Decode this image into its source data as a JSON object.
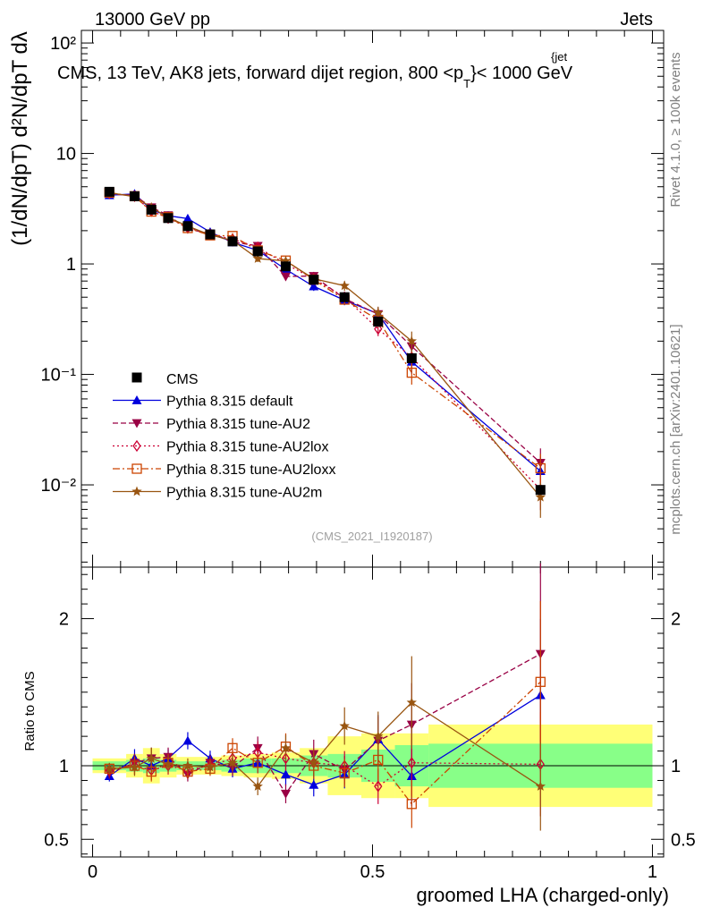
{
  "header": {
    "left": "13000 GeV pp",
    "right": "Jets"
  },
  "chart_data": {
    "type": "line",
    "title": "CMS, 13 TeV, AK8 jets, forward dijet region, 800 <p_T^{jet}< 1000 GeV",
    "title_main": "CMS, 13 TeV, AK8 jets, forward dijet region, 800 <p",
    "title_sup": "{jet",
    "title_sub": "T",
    "title_tail": "}< 1000 GeV",
    "ylabel": "(1/dN/dpT) d²N/dpT dλ",
    "xlabel": "groomed LHA (charged-only)",
    "ratio_ylabel": "Ratio to CMS",
    "watermark": "(CMS_2021_I1920187)",
    "side_top": "Rivet 4.1.0, ≥ 100k events",
    "side_bottom": "mcplots.cern.ch [arXiv:2401.10621]",
    "xlim": [
      -0.02,
      1.02
    ],
    "ylim": [
      0.0018,
      130
    ],
    "yscale": "log",
    "ratio_ylim": [
      0.38,
      2.35
    ],
    "x_ticks": [
      "0",
      "0.5",
      "1"
    ],
    "y_ticks": [
      "10⁻²",
      "10⁻¹",
      "1",
      "10",
      "10²"
    ],
    "ratio_ticks": [
      "0.5",
      "1",
      "2"
    ],
    "x": [
      0.03,
      0.075,
      0.105,
      0.135,
      0.17,
      0.21,
      0.25,
      0.295,
      0.345,
      0.395,
      0.45,
      0.51,
      0.57,
      0.8
    ],
    "bin_edges": [
      0.0,
      0.06,
      0.09,
      0.12,
      0.15,
      0.19,
      0.23,
      0.27,
      0.32,
      0.37,
      0.42,
      0.48,
      0.54,
      0.6,
      1.0
    ],
    "cms": {
      "name": "CMS",
      "values": [
        4.5,
        4.1,
        3.1,
        2.6,
        2.2,
        1.85,
        1.6,
        1.3,
        0.95,
        0.72,
        0.5,
        0.3,
        0.14,
        0.009
      ],
      "band_green": [
        0.03,
        0.04,
        0.05,
        0.04,
        0.03,
        0.03,
        0.04,
        0.05,
        0.05,
        0.07,
        0.08,
        0.11,
        0.14,
        0.15
      ],
      "band_yellow": [
        0.05,
        0.08,
        0.12,
        0.08,
        0.06,
        0.06,
        0.07,
        0.08,
        0.09,
        0.12,
        0.2,
        0.22,
        0.22,
        0.28
      ]
    },
    "series": [
      {
        "name": "Pythia 8.315 default",
        "color": "#0000dd",
        "marker": "triangle-up",
        "ratio": [
          0.93,
          1.05,
          1.0,
          1.05,
          1.17,
          1.05,
          0.98,
          1.02,
          0.94,
          0.87,
          0.94,
          1.18,
          0.93,
          1.48
        ]
      },
      {
        "name": "Pythia 8.315 tune-AU2",
        "color": "#990044",
        "marker": "triangle-down",
        "ratio": [
          0.95,
          1.02,
          1.05,
          1.06,
          0.94,
          1.02,
          0.99,
          1.12,
          0.81,
          1.08,
          0.97,
          1.17,
          1.28,
          1.76
        ]
      },
      {
        "name": "Pythia 8.315 tune-AU2lox",
        "color": "#cc0033",
        "marker": "diamond",
        "ratio": [
          0.97,
          1.0,
          0.97,
          1.0,
          0.97,
          1.0,
          1.05,
          1.09,
          1.05,
          1.02,
          1.0,
          0.86,
          1.02,
          1.01
        ]
      },
      {
        "name": "Pythia 8.315 tune-AU2loxx",
        "color": "#cc4400",
        "marker": "square",
        "ratio": [
          0.98,
          1.0,
          0.96,
          1.02,
          0.96,
          0.98,
          1.12,
          1.02,
          1.13,
          1.0,
          0.95,
          1.04,
          0.74,
          1.57
        ]
      },
      {
        "name": "Pythia 8.315 tune-AU2m",
        "color": "#995511",
        "marker": "star",
        "ratio": [
          0.98,
          0.99,
          1.05,
          1.01,
          1.0,
          0.99,
          1.02,
          0.86,
          1.12,
          1.02,
          1.27,
          1.2,
          1.43,
          0.86
        ]
      }
    ],
    "error_rel": [
      0.04,
      0.06,
      0.07,
      0.06,
      0.05,
      0.05,
      0.06,
      0.07,
      0.08,
      0.09,
      0.1,
      0.14,
      0.22,
      0.35
    ]
  }
}
